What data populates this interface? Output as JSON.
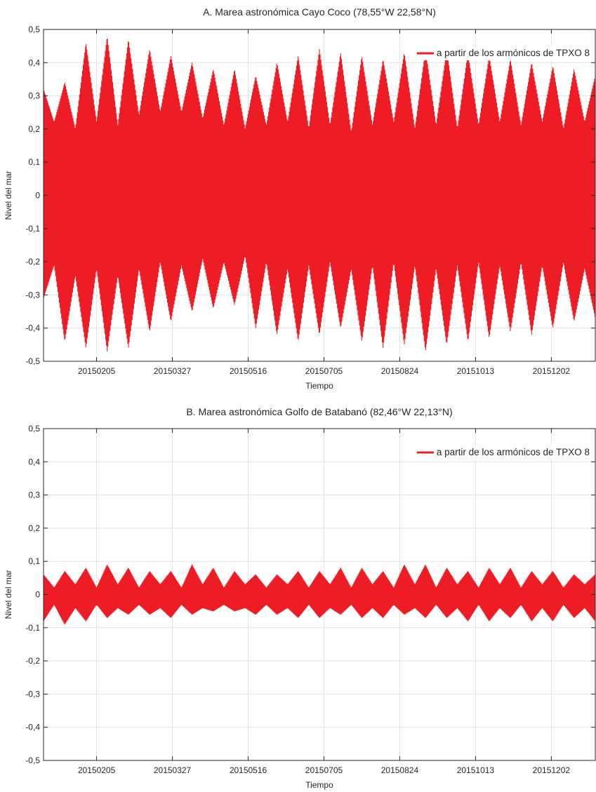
{
  "chart_data": [
    {
      "type": "line",
      "title": "A. Marea astronómica Cayo Coco (78,55°W 22,58°N)",
      "xlabel": "Tiempo",
      "ylabel": "Nivel del mar",
      "ylim": [
        -0.5,
        0.5
      ],
      "yticks": [
        -0.5,
        -0.4,
        -0.3,
        -0.2,
        -0.1,
        0,
        0.1,
        0.2,
        0.3,
        0.4,
        0.5
      ],
      "ytick_labels": [
        "-0,5",
        "-0,4",
        "-0,3",
        "-0,2",
        "-0,1",
        "0",
        "0,1",
        "0,2",
        "0,3",
        "0,4",
        "0,5"
      ],
      "xticks": [
        "20150205",
        "20150327",
        "20150516",
        "20150705",
        "20150824",
        "20151013",
        "20151202"
      ],
      "x_range": [
        "20150101",
        "20151231"
      ],
      "grid": true,
      "legend_position": "top-right",
      "series": [
        {
          "name": "a partir de los armónicos de TPXO 8",
          "color": "#ee1c25",
          "envelope_days": [
            0,
            7,
            14,
            21,
            28,
            35,
            42,
            49,
            56,
            63,
            70,
            77,
            84,
            91,
            98,
            105,
            112,
            119,
            126,
            133,
            140,
            147,
            154,
            161,
            168,
            175,
            182,
            189,
            196,
            203,
            210,
            217,
            224,
            231,
            238,
            245,
            252,
            259,
            266,
            273,
            280,
            287,
            294,
            301,
            308,
            315,
            322,
            329,
            336,
            343,
            350,
            357,
            364
          ],
          "upper": [
            0.32,
            0.22,
            0.34,
            0.2,
            0.46,
            0.22,
            0.48,
            0.21,
            0.47,
            0.24,
            0.44,
            0.25,
            0.42,
            0.25,
            0.4,
            0.23,
            0.38,
            0.21,
            0.38,
            0.2,
            0.36,
            0.21,
            0.4,
            0.22,
            0.42,
            0.2,
            0.44,
            0.21,
            0.43,
            0.19,
            0.42,
            0.21,
            0.41,
            0.22,
            0.43,
            0.2,
            0.44,
            0.21,
            0.44,
            0.2,
            0.43,
            0.21,
            0.42,
            0.22,
            0.41,
            0.21,
            0.4,
            0.22,
            0.39,
            0.2,
            0.38,
            0.22,
            0.36
          ],
          "lower": [
            -0.31,
            -0.21,
            -0.44,
            -0.24,
            -0.46,
            -0.22,
            -0.47,
            -0.24,
            -0.46,
            -0.22,
            -0.41,
            -0.2,
            -0.38,
            -0.21,
            -0.35,
            -0.19,
            -0.34,
            -0.2,
            -0.33,
            -0.18,
            -0.4,
            -0.2,
            -0.42,
            -0.22,
            -0.44,
            -0.21,
            -0.42,
            -0.2,
            -0.4,
            -0.22,
            -0.44,
            -0.21,
            -0.46,
            -0.2,
            -0.45,
            -0.21,
            -0.47,
            -0.22,
            -0.45,
            -0.21,
            -0.44,
            -0.2,
            -0.43,
            -0.21,
            -0.41,
            -0.2,
            -0.42,
            -0.21,
            -0.4,
            -0.2,
            -0.38,
            -0.22,
            -0.37
          ]
        }
      ]
    },
    {
      "type": "line",
      "title": "B. Marea astronómica Golfo de Batabanó (82,46°W 22,13°N)",
      "xlabel": "Tiempo",
      "ylabel": "Nivel del mar",
      "ylim": [
        -0.5,
        0.5
      ],
      "yticks": [
        -0.5,
        -0.4,
        -0.3,
        -0.2,
        -0.1,
        0,
        0.1,
        0.2,
        0.3,
        0.4,
        0.5
      ],
      "ytick_labels": [
        "-0,5",
        "-0,4",
        "-0,3",
        "-0,2",
        "-0,1",
        "0",
        "0,1",
        "0,2",
        "0,3",
        "0,4",
        "0,5"
      ],
      "xticks": [
        "20150205",
        "20150327",
        "20150516",
        "20150705",
        "20150824",
        "20151013",
        "20151202"
      ],
      "x_range": [
        "20150101",
        "20151231"
      ],
      "grid": true,
      "legend_position": "top-right",
      "series": [
        {
          "name": "a partir de los armónicos de TPXO 8",
          "color": "#ee1c25",
          "envelope_days": [
            0,
            7,
            14,
            21,
            28,
            35,
            42,
            49,
            56,
            63,
            70,
            77,
            84,
            91,
            98,
            105,
            112,
            119,
            126,
            133,
            140,
            147,
            154,
            161,
            168,
            175,
            182,
            189,
            196,
            203,
            210,
            217,
            224,
            231,
            238,
            245,
            252,
            259,
            266,
            273,
            280,
            287,
            294,
            301,
            308,
            315,
            322,
            329,
            336,
            343,
            350,
            357,
            364
          ],
          "upper": [
            0.06,
            0.02,
            0.07,
            0.03,
            0.08,
            0.02,
            0.09,
            0.03,
            0.08,
            0.02,
            0.07,
            0.03,
            0.07,
            0.02,
            0.09,
            0.03,
            0.08,
            0.02,
            0.07,
            0.03,
            0.06,
            0.02,
            0.06,
            0.03,
            0.07,
            0.02,
            0.07,
            0.03,
            0.08,
            0.02,
            0.08,
            0.03,
            0.07,
            0.02,
            0.09,
            0.03,
            0.09,
            0.02,
            0.08,
            0.03,
            0.07,
            0.02,
            0.08,
            0.03,
            0.08,
            0.02,
            0.07,
            0.03,
            0.07,
            0.02,
            0.06,
            0.03,
            0.06
          ],
          "lower": [
            -0.08,
            -0.03,
            -0.09,
            -0.04,
            -0.08,
            -0.03,
            -0.07,
            -0.04,
            -0.06,
            -0.03,
            -0.06,
            -0.04,
            -0.07,
            -0.03,
            -0.06,
            -0.04,
            -0.05,
            -0.03,
            -0.05,
            -0.04,
            -0.06,
            -0.03,
            -0.06,
            -0.04,
            -0.07,
            -0.03,
            -0.07,
            -0.04,
            -0.06,
            -0.03,
            -0.07,
            -0.04,
            -0.07,
            -0.03,
            -0.06,
            -0.04,
            -0.07,
            -0.03,
            -0.07,
            -0.04,
            -0.08,
            -0.03,
            -0.08,
            -0.04,
            -0.07,
            -0.03,
            -0.08,
            -0.04,
            -0.08,
            -0.03,
            -0.07,
            -0.04,
            -0.08
          ]
        }
      ]
    }
  ]
}
